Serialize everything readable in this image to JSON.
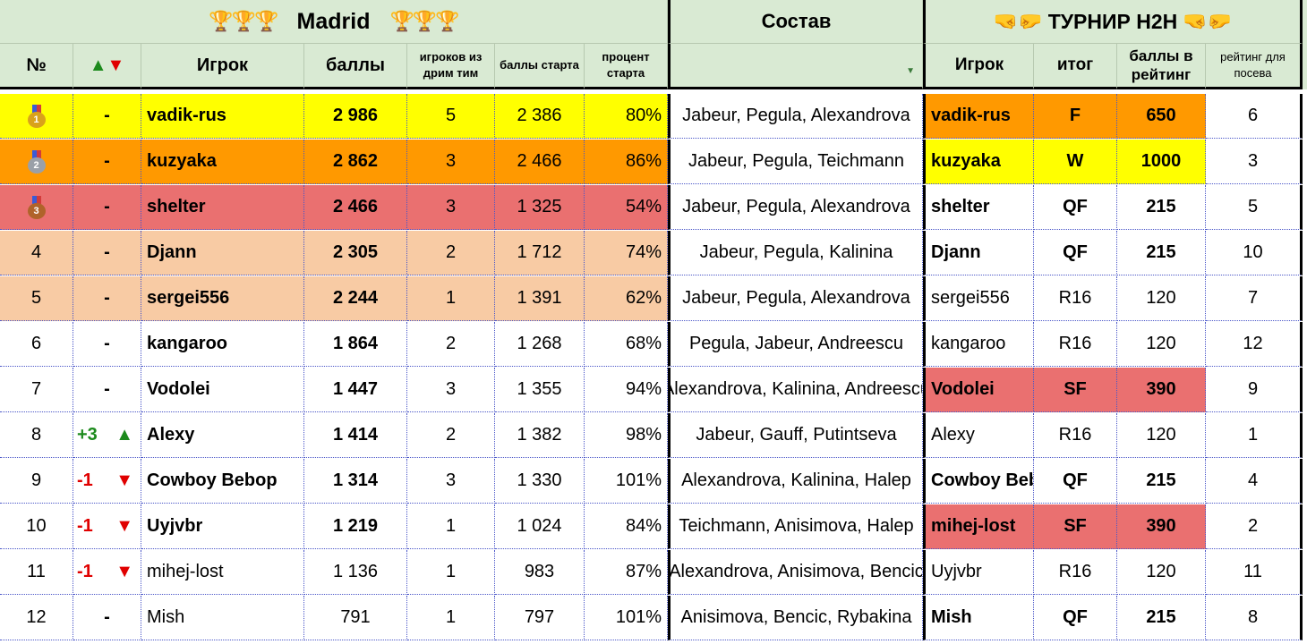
{
  "colors": {
    "header_bg": "#d9ead3",
    "gold": "#ffff00",
    "orange": "#ff9900",
    "red": "#ea7070",
    "peach": "#f8cba4",
    "white": "#ffffff"
  },
  "header": {
    "title_left": "Madrid",
    "title_trophies": "🏆🏆🏆",
    "title_middle": "Состав",
    "title_right": "ТУРНИР Н2Н",
    "title_fists": "🤜🤛",
    "cols": {
      "num": "№",
      "move": "▲▼",
      "player": "Игрок",
      "points": "баллы",
      "dream": "игроков из дрим тим",
      "start_pts": "баллы старта",
      "start_pct": "процент старта",
      "h2h_player": "Игрок",
      "result": "итог",
      "rating_pts": "баллы в рейтинг",
      "seed_rating": "рейтинг для посева"
    }
  },
  "rows": [
    {
      "rank": "1",
      "medal": "1",
      "move": "-",
      "move_dir": "",
      "player": "vadik-rus",
      "points": "2 986",
      "dream": "5",
      "start": "2 386",
      "pct": "80%",
      "lineup": "Jabeur, Pegula, Alexandrova",
      "h2h_player": "vadik-rus",
      "result": "F",
      "rating": "650",
      "seed": "6",
      "row_color": "gold",
      "h2h_color": "orange",
      "name_bold": true,
      "h2h_bold": true
    },
    {
      "rank": "2",
      "medal": "2",
      "move": "-",
      "move_dir": "",
      "player": "kuzyaka",
      "points": "2 862",
      "dream": "3",
      "start": "2 466",
      "pct": "86%",
      "lineup": "Jabeur, Pegula, Teichmann",
      "h2h_player": "kuzyaka",
      "result": "W",
      "rating": "1000",
      "seed": "3",
      "row_color": "orange",
      "h2h_color": "gold",
      "name_bold": true,
      "h2h_bold": true
    },
    {
      "rank": "3",
      "medal": "3",
      "move": "-",
      "move_dir": "",
      "player": "shelter",
      "points": "2 466",
      "dream": "3",
      "start": "1 325",
      "pct": "54%",
      "lineup": "Jabeur, Pegula, Alexandrova",
      "h2h_player": "shelter",
      "result": "QF",
      "rating": "215",
      "seed": "5",
      "row_color": "red",
      "h2h_color": "white",
      "name_bold": true,
      "h2h_bold": true
    },
    {
      "rank": "4",
      "medal": "",
      "move": "-",
      "move_dir": "",
      "player": "Djann",
      "points": "2 305",
      "dream": "2",
      "start": "1 712",
      "pct": "74%",
      "lineup": "Jabeur, Pegula, Kalinina",
      "h2h_player": "Djann",
      "result": "QF",
      "rating": "215",
      "seed": "10",
      "row_color": "peach",
      "h2h_color": "white",
      "name_bold": true,
      "h2h_bold": true
    },
    {
      "rank": "5",
      "medal": "",
      "move": "-",
      "move_dir": "",
      "player": "sergei556",
      "points": "2 244",
      "dream": "1",
      "start": "1 391",
      "pct": "62%",
      "lineup": "Jabeur, Pegula, Alexandrova",
      "h2h_player": "sergei556",
      "result": "R16",
      "rating": "120",
      "seed": "7",
      "row_color": "peach",
      "h2h_color": "white",
      "name_bold": true,
      "h2h_bold": false
    },
    {
      "rank": "6",
      "medal": "",
      "move": "-",
      "move_dir": "",
      "player": "kangaroo",
      "points": "1 864",
      "dream": "2",
      "start": "1 268",
      "pct": "68%",
      "lineup": "Pegula, Jabeur, Andreescu",
      "h2h_player": "kangaroo",
      "result": "R16",
      "rating": "120",
      "seed": "12",
      "row_color": "white",
      "h2h_color": "white",
      "name_bold": true,
      "h2h_bold": false
    },
    {
      "rank": "7",
      "medal": "",
      "move": "-",
      "move_dir": "",
      "player": "Vodolei",
      "points": "1 447",
      "dream": "3",
      "start": "1 355",
      "pct": "94%",
      "lineup": "Alexandrova, Kalinina, Andreescu",
      "h2h_player": "Vodolei",
      "result": "SF",
      "rating": "390",
      "seed": "9",
      "row_color": "white",
      "h2h_color": "red",
      "name_bold": true,
      "h2h_bold": true
    },
    {
      "rank": "8",
      "medal": "",
      "move": "+3",
      "move_dir": "up",
      "player": "Alexy",
      "points": "1 414",
      "dream": "2",
      "start": "1 382",
      "pct": "98%",
      "lineup": "Jabeur, Gauff, Putintseva",
      "h2h_player": "Alexy",
      "result": "R16",
      "rating": "120",
      "seed": "1",
      "row_color": "white",
      "h2h_color": "white",
      "name_bold": true,
      "h2h_bold": false
    },
    {
      "rank": "9",
      "medal": "",
      "move": "-1",
      "move_dir": "down",
      "player": "Cowboy Bebop",
      "points": "1 314",
      "dream": "3",
      "start": "1 330",
      "pct": "101%",
      "lineup": "Alexandrova, Kalinina, Halep",
      "h2h_player": "Cowboy Beb",
      "result": "QF",
      "rating": "215",
      "seed": "4",
      "row_color": "white",
      "h2h_color": "white",
      "name_bold": true,
      "h2h_bold": true
    },
    {
      "rank": "10",
      "medal": "",
      "move": "-1",
      "move_dir": "down",
      "player": "Uyjvbr",
      "points": "1 219",
      "dream": "1",
      "start": "1 024",
      "pct": "84%",
      "lineup": "Teichmann, Anisimova, Halep",
      "h2h_player": "mihej-lost",
      "result": "SF",
      "rating": "390",
      "seed": "2",
      "row_color": "white",
      "h2h_color": "red",
      "name_bold": true,
      "h2h_bold": true
    },
    {
      "rank": "11",
      "medal": "",
      "move": "-1",
      "move_dir": "down",
      "player": "mihej-lost",
      "points": "1 136",
      "dream": "1",
      "start": "983",
      "pct": "87%",
      "lineup": "Alexandrova, Anisimova, Bencic",
      "h2h_player": "Uyjvbr",
      "result": "R16",
      "rating": "120",
      "seed": "11",
      "row_color": "white",
      "h2h_color": "white",
      "name_bold": false,
      "h2h_bold": false
    },
    {
      "rank": "12",
      "medal": "",
      "move": "-",
      "move_dir": "",
      "player": "Mish",
      "points": "791",
      "dream": "1",
      "start": "797",
      "pct": "101%",
      "lineup": "Anisimova, Bencic, Rybakina",
      "h2h_player": "Mish",
      "result": "QF",
      "rating": "215",
      "seed": "8",
      "row_color": "white",
      "h2h_color": "white",
      "name_bold": false,
      "h2h_bold": true
    }
  ]
}
